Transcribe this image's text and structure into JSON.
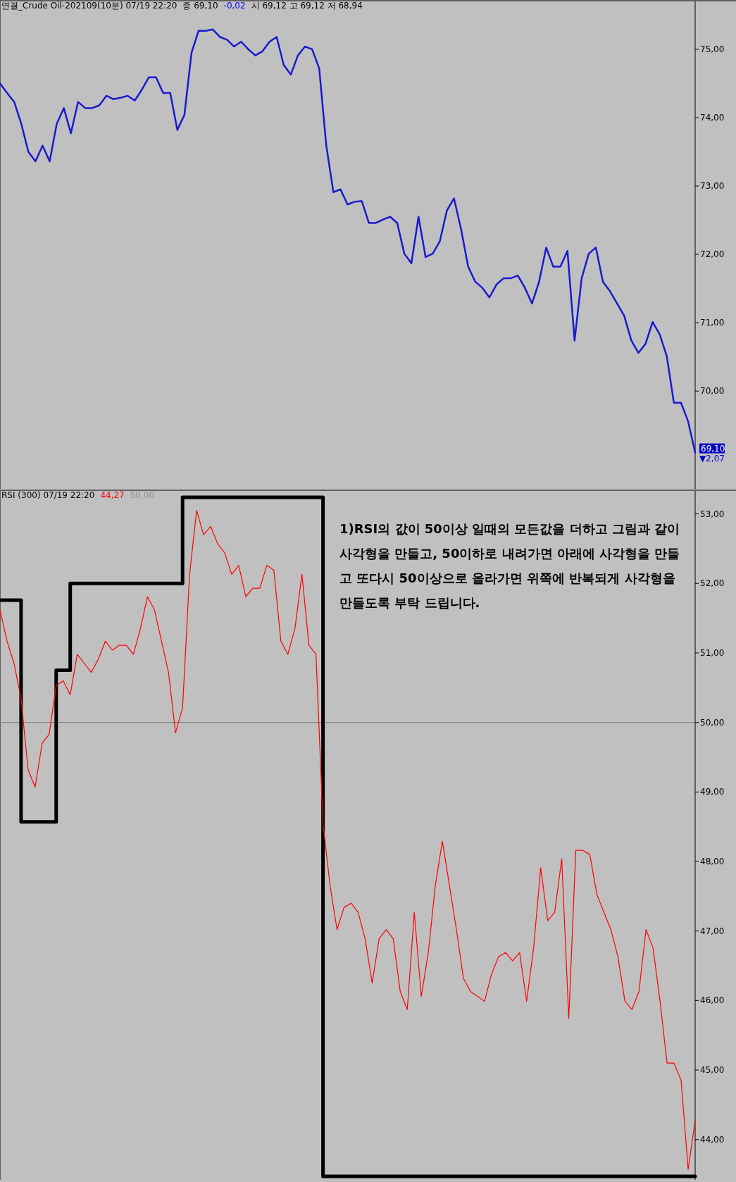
{
  "chart_data": [
    {
      "type": "line",
      "title": "연결_Crude Oil-202109(10분) 07/19 22:20",
      "annotations": [
        "종 69,10",
        "-0,02",
        "시 69,12 고 69,12 저 68,94",
        "69,10",
        "▼2,07"
      ],
      "categories": [
        null,
        null,
        null,
        null,
        null,
        null,
        null,
        null,
        null,
        null,
        null,
        null,
        null,
        null,
        null,
        null,
        null,
        null,
        null,
        null,
        null,
        null,
        null,
        null,
        null,
        null,
        null,
        null,
        null,
        null,
        null,
        null,
        null,
        null,
        null,
        null,
        null,
        null,
        null,
        null,
        null,
        null,
        null,
        null,
        null,
        null,
        null,
        null,
        null,
        null,
        null,
        null,
        null,
        null,
        null,
        null,
        null,
        null,
        null,
        null,
        null,
        null,
        null,
        null,
        null,
        null,
        null,
        null,
        null,
        null,
        null,
        null,
        null,
        null,
        null,
        null,
        null,
        null,
        null,
        null,
        null,
        null,
        null,
        null,
        null,
        null,
        null,
        null,
        null,
        null,
        null,
        null,
        null,
        null,
        null,
        null,
        null,
        null,
        null
      ],
      "series": [
        {
          "color": "#1a1ad0",
          "values": [
            74.5,
            74.36,
            74.23,
            73.91,
            73.5,
            73.36,
            73.59,
            73.36,
            73.91,
            74.14,
            73.77,
            74.23,
            74.14,
            74.14,
            74.18,
            74.32,
            74.27,
            74.29,
            74.32,
            74.25,
            74.41,
            74.59,
            74.59,
            74.36,
            74.36,
            73.82,
            74.04,
            74.95,
            75.27,
            75.27,
            75.29,
            75.18,
            75.14,
            75.04,
            75.11,
            75.0,
            74.91,
            74.97,
            75.11,
            75.18,
            74.77,
            74.63,
            74.91,
            75.04,
            75.0,
            74.72,
            73.59,
            72.91,
            72.95,
            72.73,
            72.77,
            72.78,
            72.46,
            72.46,
            72.51,
            72.55,
            72.46,
            72.01,
            71.87,
            72.55,
            71.96,
            72.01,
            72.19,
            72.64,
            72.82,
            72.37,
            71.82,
            71.6,
            71.51,
            71.37,
            71.56,
            71.65,
            71.65,
            71.69,
            71.51,
            71.28,
            71.6,
            72.1,
            71.82,
            71.82,
            72.05,
            70.74,
            71.65,
            72.01,
            72.1,
            71.6,
            71.46,
            71.28,
            71.1,
            70.74,
            70.56,
            70.69,
            71.01,
            70.83,
            70.51,
            69.83,
            69.83,
            69.56,
            69.1
          ]
        }
      ],
      "ylim": [
        68.57,
        75.7
      ],
      "yticks": [
        {
          "value": 70,
          "label": "70,00"
        },
        {
          "value": 71,
          "label": "71,00"
        },
        {
          "value": 72,
          "label": "72,00"
        },
        {
          "value": 73,
          "label": "73,00"
        },
        {
          "value": 74,
          "label": "74,00"
        },
        {
          "value": 75,
          "label": "75,00"
        }
      ],
      "tick_labels": "y",
      "grid": false
    },
    {
      "type": "line",
      "title": "RSI  (300) 07/19 22:20",
      "annotations": [
        "44,27",
        "50,00",
        "1)RSI의 값이 50이상 일때의 모든값을 더하고  그림과 같이 사각형을 만들고,  50이하로 내려가면 아래에 사각형을 만들고  또다시 50이상으로 올라가면 위쪽에 반복되게 사각형을 만들도록 부탁 드립니다."
      ],
      "categories": [
        null,
        null,
        null,
        null,
        null,
        null,
        null,
        null,
        null,
        null,
        null,
        null,
        null,
        null,
        null,
        null,
        null,
        null,
        null,
        null,
        null,
        null,
        null,
        null,
        null,
        null,
        null,
        null,
        null,
        null,
        null,
        null,
        null,
        null,
        null,
        null,
        null,
        null,
        null,
        null,
        null,
        null,
        null,
        null,
        null,
        null,
        null,
        null,
        null,
        null,
        null,
        null,
        null,
        null,
        null,
        null,
        null,
        null,
        null,
        null,
        null,
        null,
        null,
        null,
        null,
        null,
        null,
        null,
        null,
        null,
        null,
        null,
        null,
        null,
        null,
        null,
        null,
        null,
        null,
        null,
        null,
        null,
        null,
        null,
        null,
        null,
        null,
        null,
        null,
        null,
        null,
        null,
        null,
        null,
        null,
        null,
        null,
        null,
        null,
        null
      ],
      "series": [
        {
          "color": "#ff0000",
          "values": [
            51.62,
            51.17,
            50.85,
            50.34,
            49.32,
            49.07,
            49.7,
            49.83,
            50.53,
            50.6,
            50.4,
            50.98,
            50.85,
            50.72,
            50.91,
            51.17,
            51.04,
            51.11,
            51.11,
            50.98,
            51.35,
            51.81,
            51.62,
            51.17,
            50.72,
            49.85,
            50.21,
            52.13,
            53.05,
            52.7,
            52.82,
            52.57,
            52.44,
            52.13,
            52.26,
            51.81,
            51.93,
            51.93,
            52.26,
            52.19,
            51.17,
            50.98,
            51.35,
            52.13,
            51.11,
            50.98,
            48.55,
            47.66,
            47.02,
            47.34,
            47.4,
            47.27,
            46.89,
            46.25,
            46.89,
            47.02,
            46.89,
            46.13,
            45.87,
            47.27,
            46.06,
            46.69,
            47.66,
            48.29,
            47.66,
            47.02,
            46.32,
            46.13,
            46.06,
            45.99,
            46.38,
            46.63,
            46.69,
            46.57,
            46.69,
            45.99,
            46.76,
            47.91,
            47.15,
            47.27,
            48.04,
            45.74,
            48.16,
            48.16,
            48.1,
            47.53,
            47.27,
            47.02,
            46.63,
            45.99,
            45.87,
            46.13,
            47.02,
            46.76,
            45.99,
            45.1,
            45.1,
            44.85,
            43.57,
            44.27
          ]
        },
        {
          "type": "step",
          "color": "#000000",
          "values": [
            51.76,
            51.76,
            51.76,
            48.57,
            48.57,
            48.57,
            48.57,
            48.57,
            50.75,
            50.75,
            52.0,
            52.0,
            52.0,
            52.0,
            52.0,
            52.0,
            52.0,
            52.0,
            52.0,
            52.0,
            52.0,
            52.0,
            52.0,
            52.0,
            52.0,
            52.0,
            53.24,
            53.24,
            53.24,
            53.24,
            53.24,
            53.24,
            53.24,
            53.24,
            53.24,
            53.24,
            53.24,
            53.24,
            53.24,
            53.24,
            53.24,
            53.24,
            53.24,
            53.24,
            53.24,
            53.24,
            43.47,
            43.47,
            43.47,
            43.47,
            43.47,
            43.47,
            43.47,
            43.47,
            43.47,
            43.47,
            43.47,
            43.47,
            43.47,
            43.47,
            43.47,
            43.47,
            43.47,
            43.47,
            43.47,
            43.47,
            43.47,
            43.47,
            43.47,
            43.47,
            43.47,
            43.47,
            43.47,
            43.47,
            43.47,
            43.47,
            43.47,
            43.47,
            43.47,
            43.47,
            43.47,
            43.47,
            43.47,
            43.47,
            43.47,
            43.47,
            43.47,
            43.47,
            43.47,
            43.47,
            43.47,
            43.47,
            43.47,
            43.47,
            43.47,
            43.47,
            43.47,
            43.47,
            43.47,
            43.47
          ]
        }
      ],
      "ylim": [
        43.42,
        53.33
      ],
      "yticks": [
        {
          "value": 44,
          "label": "44,00"
        },
        {
          "value": 45,
          "label": "45,00"
        },
        {
          "value": 46,
          "label": "46,00"
        },
        {
          "value": 47,
          "label": "47,00"
        },
        {
          "value": 48,
          "label": "48,00"
        },
        {
          "value": 49,
          "label": "49,00"
        },
        {
          "value": 50,
          "label": "50,00"
        },
        {
          "value": 51,
          "label": "51,00"
        },
        {
          "value": 52,
          "label": "52,00"
        },
        {
          "value": 53,
          "label": "53,00"
        }
      ],
      "ref_lines": [
        {
          "axis": "y",
          "value": 50,
          "color": "#808080"
        }
      ],
      "tick_labels": "y",
      "grid": false
    }
  ]
}
